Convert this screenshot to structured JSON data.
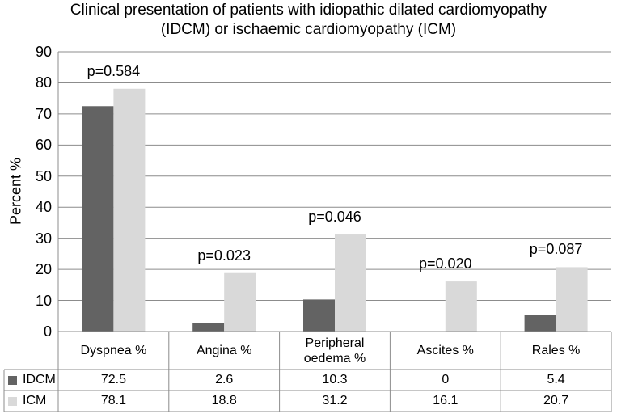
{
  "chart_data": {
    "type": "bar",
    "title": "Clinical presentation of patients with idiopathic dilated cardiomyopathy (IDCM) or ischaemic cardiomyopathy (ICM)",
    "title_lines": [
      "Clinical presentation of patients with idiopathic dilated cardiomyopathy",
      "(IDCM) or ischaemic cardiomyopathy (ICM)"
    ],
    "ylabel": "Percent %",
    "xlabel": "",
    "ylim": [
      0,
      90
    ],
    "yticks": [
      0,
      10,
      20,
      30,
      40,
      50,
      60,
      70,
      80,
      90
    ],
    "grid": true,
    "legend_placement": "data-table",
    "categories": [
      "Dyspnea %",
      "Angina %",
      "Peripheral oedema %",
      "Ascites %",
      "Rales %"
    ],
    "category_lines": [
      [
        "Dyspnea %"
      ],
      [
        "Angina %"
      ],
      [
        "Peripheral",
        "oedema %"
      ],
      [
        "Ascites %"
      ],
      [
        "Rales %"
      ]
    ],
    "series": [
      {
        "name": "IDCM",
        "color": "#636363",
        "values": [
          72.5,
          2.6,
          10.3,
          0,
          5.4
        ],
        "value_labels": [
          "72.5",
          "2.6",
          "10.3",
          "0",
          "5.4"
        ]
      },
      {
        "name": "ICM",
        "color": "#d9d9d9",
        "values": [
          78.1,
          18.8,
          31.2,
          16.1,
          20.7
        ],
        "value_labels": [
          "78.1",
          "18.8",
          "31.2",
          "16.1",
          "20.7"
        ]
      }
    ],
    "annotations": [
      "p=0.584",
      "p=0.023",
      "p=0.046",
      "p=0.020",
      "p=0.087"
    ]
  }
}
